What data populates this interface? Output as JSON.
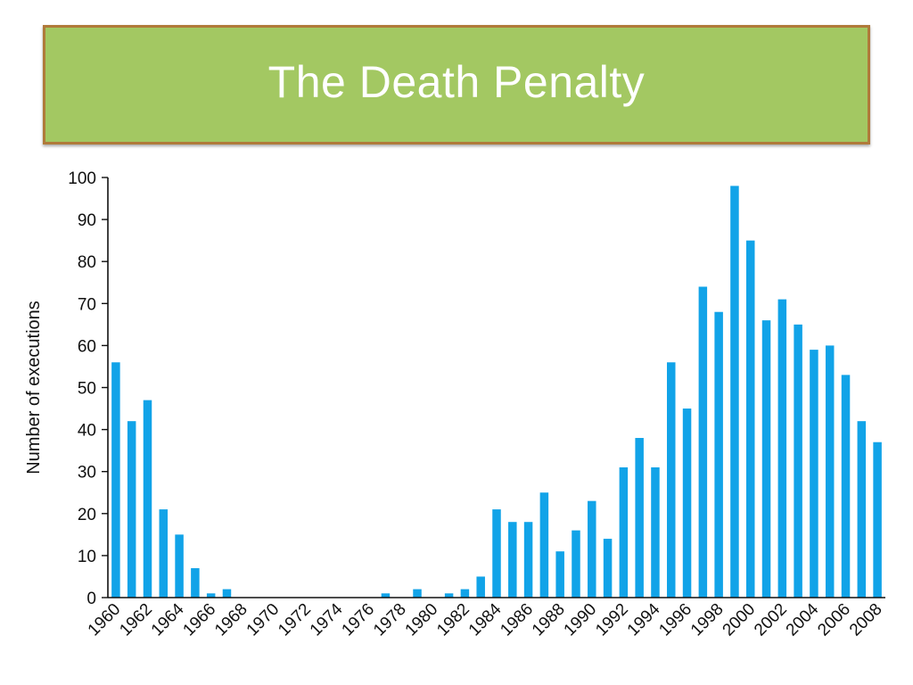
{
  "slide": {
    "title": "The Death Penalty"
  },
  "colors": {
    "banner_fill": "#a3c862",
    "banner_border": "#b07a3a",
    "bar": "#11a3e8",
    "axis": "#111111"
  },
  "chart_data": {
    "type": "bar",
    "title": "",
    "xlabel": "",
    "ylabel": "Number of executions",
    "ylim": [
      0,
      100
    ],
    "yticks": [
      0,
      10,
      20,
      30,
      40,
      50,
      60,
      70,
      80,
      90,
      100
    ],
    "grid": false,
    "categories": [
      "1960",
      "1961",
      "1962",
      "1963",
      "1964",
      "1965",
      "1966",
      "1967",
      "1968",
      "1969",
      "1970",
      "1971",
      "1972",
      "1973",
      "1974",
      "1975",
      "1976",
      "1977",
      "1978",
      "1979",
      "1980",
      "1981",
      "1982",
      "1983",
      "1984",
      "1985",
      "1986",
      "1987",
      "1988",
      "1989",
      "1990",
      "1991",
      "1992",
      "1993",
      "1994",
      "1995",
      "1996",
      "1997",
      "1998",
      "1999",
      "2000",
      "2001",
      "2002",
      "2003",
      "2004",
      "2005",
      "2006",
      "2007",
      "2008"
    ],
    "x_tick_labels": [
      "1960",
      "1962",
      "1964",
      "1966",
      "1968",
      "1970",
      "1972",
      "1974",
      "1976",
      "1978",
      "1980",
      "1982",
      "1984",
      "1986",
      "1988",
      "1990",
      "1992",
      "1994",
      "1996",
      "1998",
      "2000",
      "2002",
      "2004",
      "2006",
      "2008"
    ],
    "values": [
      56,
      42,
      47,
      21,
      15,
      7,
      1,
      2,
      0,
      0,
      0,
      0,
      0,
      0,
      0,
      0,
      0,
      1,
      0,
      2,
      0,
      1,
      2,
      5,
      21,
      18,
      18,
      25,
      11,
      16,
      23,
      14,
      31,
      38,
      31,
      56,
      45,
      74,
      68,
      98,
      85,
      66,
      71,
      65,
      59,
      60,
      53,
      42,
      37
    ]
  }
}
